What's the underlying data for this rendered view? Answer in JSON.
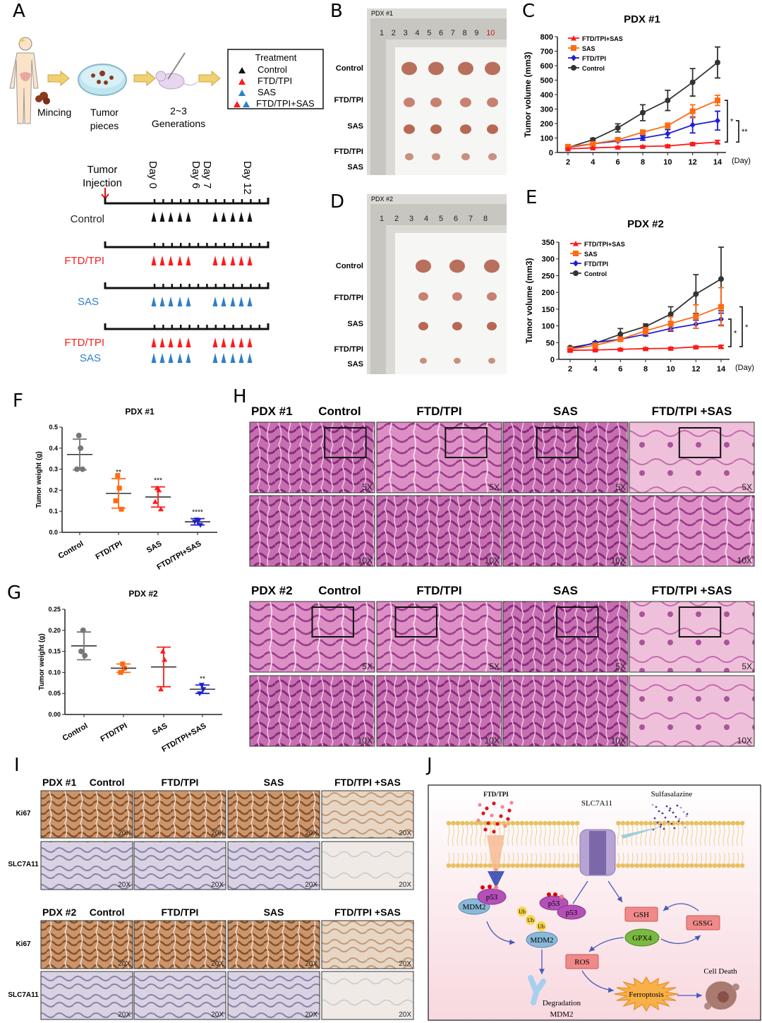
{
  "panel_letters": [
    "A",
    "B",
    "C",
    "D",
    "E",
    "F",
    "G",
    "H",
    "I",
    "J"
  ],
  "colors": {
    "combo": "#ff1a1a",
    "sas": "#ff6a13",
    "ftd": "#1f1fd6",
    "control": "#333333",
    "sas_blue": "#2f7fc8",
    "ftd_red": "#ff1a1a"
  },
  "panelA": {
    "steps": [
      "Mincing",
      "Tumor",
      "pieces",
      "2~3",
      "Generations"
    ],
    "legend": {
      "title": "Treatment",
      "items": [
        "Control",
        "FTD/TPI",
        "SAS",
        "FTD/TPI+SAS"
      ]
    },
    "injection": [
      "Tumor",
      "Injection"
    ],
    "days": [
      "Day 0",
      "Day 6",
      "Day 7",
      "Day 12"
    ],
    "groups": [
      "Control",
      "FTD/TPI",
      "SAS",
      "FTD/TPI",
      "SAS"
    ]
  },
  "panelB": {
    "title": "PDX #1",
    "rows": [
      "Control",
      "FTD/TPI",
      "SAS",
      "FTD/TPI",
      "SAS"
    ],
    "ruler": [
      "1",
      "2",
      "3",
      "4",
      "5",
      "6",
      "7",
      "8",
      "9",
      "10"
    ]
  },
  "panelD": {
    "title": "PDX #2",
    "rows": [
      "Control",
      "FTD/TPI",
      "SAS",
      "FTD/TPI",
      "SAS"
    ],
    "ruler": [
      "1",
      "2",
      "3",
      "4",
      "5",
      "6",
      "7",
      "8"
    ]
  },
  "chart_data": [
    {
      "id": "C",
      "type": "line",
      "title": "PDX #1",
      "xlabel": "(Day)",
      "ylabel": "Tumor  volume (mm3)",
      "x": [
        2,
        4,
        6,
        8,
        10,
        12,
        14
      ],
      "ylim": [
        0,
        800
      ],
      "yticks": [
        0,
        100,
        200,
        300,
        400,
        500,
        600,
        700,
        800
      ],
      "legend": "top-left",
      "grid": false,
      "series": [
        {
          "name": "FTD/TPI+SAS",
          "marker": "triangle",
          "values": [
            25,
            32,
            37,
            42,
            45,
            60,
            72
          ],
          "error": [
            3,
            3,
            5,
            5,
            8,
            8,
            12
          ]
        },
        {
          "name": "SAS",
          "marker": "square",
          "values": [
            40,
            60,
            88,
            140,
            185,
            285,
            360
          ],
          "error": [
            5,
            5,
            8,
            15,
            18,
            45,
            35
          ]
        },
        {
          "name": "FTD/TPI",
          "marker": "diamond",
          "values": [
            35,
            60,
            80,
            100,
            130,
            190,
            220
          ],
          "error": [
            5,
            5,
            8,
            15,
            28,
            55,
            65
          ]
        },
        {
          "name": "Control",
          "marker": "circle",
          "values": [
            35,
            88,
            170,
            275,
            360,
            485,
            622
          ],
          "error": [
            5,
            10,
            28,
            55,
            70,
            95,
            107
          ]
        }
      ],
      "annotations": [
        {
          "from": "SAS",
          "to": "FTD/TPI+SAS",
          "label": "*"
        },
        {
          "from": "FTD/TPI",
          "to": "FTD/TPI+SAS",
          "label": "**"
        }
      ]
    },
    {
      "id": "E",
      "type": "line",
      "title": "PDX #2",
      "xlabel": "(Day)",
      "ylabel": "Tumor  volume (mm3)",
      "x": [
        2,
        4,
        6,
        8,
        10,
        12,
        14
      ],
      "ylim": [
        0,
        350
      ],
      "yticks": [
        0,
        50,
        100,
        150,
        200,
        250,
        300,
        350
      ],
      "legend": "top-left",
      "grid": false,
      "series": [
        {
          "name": "FTD/TPI+SAS",
          "marker": "triangle",
          "values": [
            27,
            28,
            30,
            32,
            33,
            37,
            38
          ],
          "error": [
            3,
            3,
            3,
            3,
            3,
            3,
            4
          ]
        },
        {
          "name": "SAS",
          "marker": "square",
          "values": [
            30,
            42,
            60,
            85,
            107,
            128,
            157
          ],
          "error": [
            2,
            3,
            5,
            10,
            20,
            35,
            57
          ]
        },
        {
          "name": "FTD/TPI",
          "marker": "diamond",
          "values": [
            30,
            50,
            60,
            75,
            92,
            105,
            120
          ],
          "error": [
            2,
            3,
            5,
            5,
            8,
            12,
            18
          ]
        },
        {
          "name": "Control",
          "marker": "circle",
          "values": [
            35,
            48,
            75,
            98,
            135,
            195,
            240
          ],
          "error": [
            3,
            3,
            17,
            8,
            22,
            58,
            95
          ]
        }
      ],
      "annotations": [
        {
          "from": "FTD/TPI",
          "to": "FTD/TPI+SAS",
          "label": "*"
        },
        {
          "from": "SAS",
          "to": "FTD/TPI+SAS",
          "label": "*"
        }
      ]
    },
    {
      "id": "F",
      "type": "scatter",
      "title": "PDX #1",
      "ylabel": "Tumor weight (g)",
      "ylim": [
        0,
        0.5
      ],
      "yticks": [
        "0.0",
        "0.1",
        "0.2",
        "0.3",
        "0.4",
        "0.5"
      ],
      "categories": [
        "Control",
        "FTD/TPI",
        "SAS",
        "FTD/TPI+SAS"
      ],
      "groups": [
        {
          "points": [
            0.46,
            0.4,
            0.3,
            0.3
          ],
          "mean": 0.37,
          "sd": 0.073,
          "sig": ""
        },
        {
          "points": [
            0.27,
            0.21,
            0.15,
            0.11
          ],
          "mean": 0.185,
          "sd": 0.07,
          "sig": "**"
        },
        {
          "points": [
            0.21,
            0.2,
            0.145,
            0.11
          ],
          "mean": 0.168,
          "sd": 0.048,
          "sig": "***"
        },
        {
          "points": [
            0.06,
            0.055,
            0.05,
            0.035
          ],
          "mean": 0.05,
          "sd": 0.015,
          "sig": "****"
        }
      ]
    },
    {
      "id": "G",
      "type": "scatter",
      "title": "PDX #2",
      "ylabel": "Tumor weight (g)",
      "ylim": [
        0,
        0.25
      ],
      "yticks": [
        "0.00",
        "0.05",
        "0.10",
        "0.15",
        "0.20",
        "0.25"
      ],
      "categories": [
        "Control",
        "FTD/TPI",
        "SAS",
        "FTD/TPI+SAS"
      ],
      "groups": [
        {
          "points": [
            0.2,
            0.14,
            0.15
          ],
          "mean": 0.163,
          "sd": 0.033,
          "sig": ""
        },
        {
          "points": [
            0.12,
            0.11,
            0.1
          ],
          "mean": 0.11,
          "sd": 0.01,
          "sig": ""
        },
        {
          "points": [
            0.15,
            0.13,
            0.06
          ],
          "mean": 0.113,
          "sd": 0.047,
          "sig": ""
        },
        {
          "points": [
            0.07,
            0.06,
            0.05
          ],
          "mean": 0.06,
          "sd": 0.01,
          "sig": "**"
        }
      ]
    }
  ],
  "panelH": {
    "pdx1": {
      "label": "PDX #1",
      "cols": [
        "Control",
        "FTD/TPI",
        "SAS",
        "FTD/TPI +SAS"
      ]
    },
    "pdx2": {
      "label": "PDX #2",
      "cols": [
        "Control",
        "FTD/TPI",
        "SAS",
        "FTD/TPI +SAS"
      ]
    },
    "mag_low": "5X",
    "mag_high": "10X"
  },
  "panelI": {
    "pdx1": {
      "label": "PDX #1",
      "cols": [
        "Control",
        "FTD/TPI",
        "SAS",
        "FTD/TPI +SAS"
      ]
    },
    "pdx2": {
      "label": "PDX #2",
      "cols": [
        "Control",
        "FTD/TPI",
        "SAS",
        "FTD/TPI +SAS"
      ]
    },
    "rows": [
      "Ki67",
      "SLC7A11"
    ],
    "mag": "20X"
  },
  "panelJ": {
    "drug1": "FTD/TPI",
    "drug2": "Sulfasalazine",
    "transporter": "SLC7A11",
    "p53": "p53",
    "mdm2": "MDM2",
    "ub": "Ub",
    "gsh": "GSH",
    "gssg": "GSSG",
    "gpx4": "GPX4",
    "ros": "ROS",
    "ferroptosis": "Ferroptosis",
    "cell_death": "Cell Death",
    "degradation": "Degradation",
    "degradation_sub": "MDM2"
  }
}
